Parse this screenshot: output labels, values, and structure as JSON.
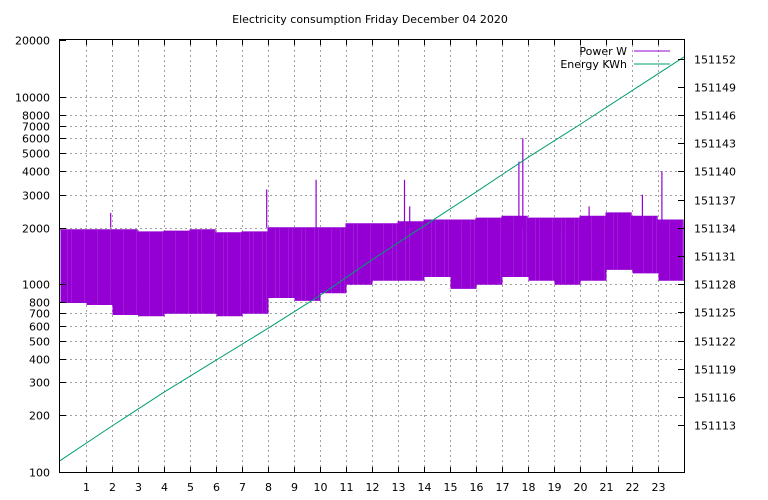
{
  "chart_data": {
    "type": "line",
    "title": "Electricity consumption Friday December 04 2020",
    "xlabel": "",
    "ylabel": "",
    "y2label": "",
    "xlim": [
      0,
      24
    ],
    "ylim": [
      100,
      20000
    ],
    "yscale": "log",
    "y2lim": [
      151108,
      151154
    ],
    "x_ticks": [
      1,
      2,
      3,
      4,
      5,
      6,
      7,
      8,
      9,
      10,
      11,
      12,
      13,
      14,
      15,
      16,
      17,
      18,
      19,
      20,
      21,
      22,
      23
    ],
    "y_ticks": [
      100,
      200,
      300,
      400,
      500,
      600,
      700,
      800,
      1000,
      2000,
      3000,
      4000,
      5000,
      6000,
      7000,
      8000,
      10000,
      20000
    ],
    "y2_ticks": [
      151113,
      151116,
      151119,
      151122,
      151125,
      151128,
      151131,
      151134,
      151137,
      151140,
      151143,
      151146,
      151149,
      151152
    ],
    "grid": true,
    "legend_position": "top-right",
    "series": [
      {
        "name": "Power W",
        "axis": "y",
        "color": "#9400d3",
        "style": "square-wave",
        "segments": [
          {
            "x": [
              0,
              1
            ],
            "low": 800,
            "high": 1950
          },
          {
            "x": [
              1,
              2
            ],
            "low": 780,
            "high": 1950
          },
          {
            "x": [
              2,
              3
            ],
            "low": 690,
            "high": 1950
          },
          {
            "x": [
              3,
              4
            ],
            "low": 680,
            "high": 1900
          },
          {
            "x": [
              4,
              5
            ],
            "low": 700,
            "high": 1920
          },
          {
            "x": [
              5,
              6
            ],
            "low": 700,
            "high": 1950
          },
          {
            "x": [
              6,
              7
            ],
            "low": 680,
            "high": 1880
          },
          {
            "x": [
              7,
              8
            ],
            "low": 700,
            "high": 1900
          },
          {
            "x": [
              8,
              9
            ],
            "low": 850,
            "high": 2000
          },
          {
            "x": [
              9,
              10
            ],
            "low": 820,
            "high": 2000
          },
          {
            "x": [
              10,
              11
            ],
            "low": 900,
            "high": 2000
          },
          {
            "x": [
              11,
              12
            ],
            "low": 1000,
            "high": 2100
          },
          {
            "x": [
              12,
              13
            ],
            "low": 1050,
            "high": 2100
          },
          {
            "x": [
              13,
              14
            ],
            "low": 1050,
            "high": 2150
          },
          {
            "x": [
              14,
              15
            ],
            "low": 1100,
            "high": 2200
          },
          {
            "x": [
              15,
              16
            ],
            "low": 950,
            "high": 2200
          },
          {
            "x": [
              16,
              17
            ],
            "low": 1000,
            "high": 2250
          },
          {
            "x": [
              17,
              18
            ],
            "low": 1100,
            "high": 2300
          },
          {
            "x": [
              18,
              19
            ],
            "low": 1050,
            "high": 2250
          },
          {
            "x": [
              19,
              20
            ],
            "low": 1000,
            "high": 2250
          },
          {
            "x": [
              20,
              21
            ],
            "low": 1050,
            "high": 2300
          },
          {
            "x": [
              21,
              22
            ],
            "low": 1200,
            "high": 2400
          },
          {
            "x": [
              22,
              23
            ],
            "low": 1150,
            "high": 2300
          },
          {
            "x": [
              23,
              24
            ],
            "low": 1050,
            "high": 2200
          }
        ],
        "spikes": [
          [
            1.95,
            2400
          ],
          [
            7.95,
            3200
          ],
          [
            9.85,
            3600
          ],
          [
            13.25,
            3600
          ],
          [
            13.45,
            2600
          ],
          [
            17.65,
            4500
          ],
          [
            17.8,
            6000
          ],
          [
            20.35,
            2600
          ],
          [
            22.4,
            3000
          ],
          [
            23.15,
            4000
          ]
        ]
      },
      {
        "name": "Energy KWh",
        "axis": "y2",
        "color": "#009e73",
        "x": [
          0,
          2,
          4,
          6,
          8,
          10,
          12,
          14,
          16,
          18,
          20,
          22,
          24
        ],
        "values": [
          151109.2,
          151112.9,
          151116.5,
          151119.9,
          151123.3,
          151126.8,
          151130.6,
          151134.2,
          151137.8,
          151141.5,
          151145.0,
          151148.6,
          151152.2
        ]
      }
    ]
  }
}
